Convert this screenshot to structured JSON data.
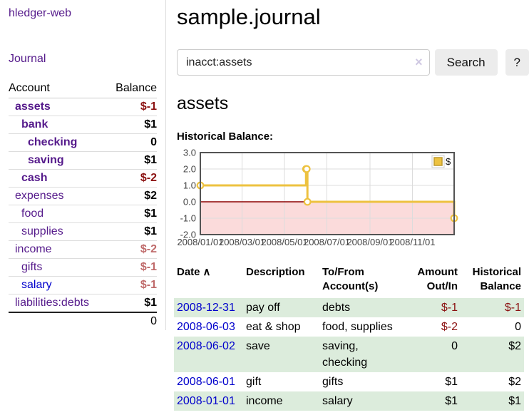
{
  "colors": {
    "purple": "#551a8b",
    "blue-link": "#0000cc",
    "neg-strong": "#8b1111",
    "neg-soft": "#bf6a6a",
    "row-green": "#dcecdc",
    "gold": "#edc240",
    "gold-dark": "#bf9a2c",
    "zero-red": "#8b0000",
    "neg-fill": "#fbdbdb",
    "grid": "#dcdcdc",
    "chart-border": "#545454",
    "axis-text": "#444444",
    "btn-bg": "#ececec",
    "input-border": "#cccccc",
    "divider": "#dddddd",
    "clear-x": "#cfc8e2"
  },
  "app": {
    "title": "hledger-web",
    "nav_journal": "Journal"
  },
  "sidebar": {
    "header": {
      "account": "Account",
      "balance": "Balance"
    },
    "accounts": [
      {
        "name": "assets",
        "depth": 1,
        "bold": true,
        "balance": "$-1",
        "neg": "strong"
      },
      {
        "name": "bank",
        "depth": 2,
        "bold": true,
        "balance": "$1"
      },
      {
        "name": "checking",
        "depth": 3,
        "bold": true,
        "balance": "0"
      },
      {
        "name": "saving",
        "depth": 3,
        "bold": true,
        "balance": "$1"
      },
      {
        "name": "cash",
        "depth": 2,
        "bold": true,
        "balance": "$-2",
        "neg": "strong"
      },
      {
        "name": "expenses",
        "depth": 1,
        "bold": false,
        "balance": "$2"
      },
      {
        "name": "food",
        "depth": 2,
        "bold": false,
        "balance": "$1"
      },
      {
        "name": "supplies",
        "depth": 2,
        "bold": false,
        "balance": "$1"
      },
      {
        "name": "income",
        "depth": 1,
        "bold": false,
        "balance": "$-2",
        "neg": "soft"
      },
      {
        "name": "gifts",
        "depth": 2,
        "bold": false,
        "balance": "$-1",
        "neg": "soft"
      },
      {
        "name": "salary",
        "depth": 2,
        "bold": false,
        "balance": "$-1",
        "neg": "soft",
        "link_color": "blue"
      },
      {
        "name": "liabilities:debts",
        "depth": 1,
        "bold": false,
        "balance": "$1"
      }
    ],
    "total": "0"
  },
  "main": {
    "title": "sample.journal",
    "search": {
      "value": "inacct:assets",
      "clear_icon": "×",
      "button": "Search",
      "help": "?"
    },
    "account_heading": "assets",
    "chart_label": "Historical Balance:"
  },
  "chart_data": {
    "type": "line",
    "steps": true,
    "title": "Historical Balance",
    "series": [
      {
        "name": "$",
        "color": "#edc240",
        "points": [
          [
            "2008-01-01",
            1
          ],
          [
            "2008-06-01",
            2
          ],
          [
            "2008-06-02",
            2
          ],
          [
            "2008-06-03",
            0
          ],
          [
            "2008-12-31",
            -1
          ]
        ]
      }
    ],
    "xlim": [
      "2008-01-01",
      "2008-12-31"
    ],
    "ylim": [
      -2,
      3
    ],
    "x_ticks": [
      "2008/01/01",
      "2008/03/01",
      "2008/05/01",
      "2008/07/01",
      "2008/09/01",
      "2008/11/01"
    ],
    "y_ticks": [
      "3.0",
      "2.0",
      "1.0",
      "0.0",
      "-1.0",
      "-2.0"
    ],
    "legend_position": "top-right",
    "grid": true,
    "negative_region_shaded": true,
    "zero_line": true
  },
  "register": {
    "sort_icon": "∧",
    "columns": {
      "date": "Date",
      "description": "Description",
      "accounts": "To/From Account(s)",
      "amount": "Amount Out/In",
      "balance": "Historical Balance"
    },
    "rows": [
      {
        "date": "2008-12-31",
        "description": "pay off",
        "accounts": "debts",
        "amount": "$-1",
        "balance": "$-1",
        "amount_neg": true,
        "balance_neg": true
      },
      {
        "date": "2008-06-03",
        "description": "eat & shop",
        "accounts": "food, supplies",
        "amount": "$-2",
        "balance": "0",
        "amount_neg": true,
        "balance_neg": false
      },
      {
        "date": "2008-06-02",
        "description": "save",
        "accounts": "saving, checking",
        "amount": "0",
        "balance": "$2",
        "amount_neg": false,
        "balance_neg": false
      },
      {
        "date": "2008-06-01",
        "description": "gift",
        "accounts": "gifts",
        "amount": "$1",
        "balance": "$2",
        "amount_neg": false,
        "balance_neg": false
      },
      {
        "date": "2008-01-01",
        "description": "income",
        "accounts": "salary",
        "amount": "$1",
        "balance": "$1",
        "amount_neg": false,
        "balance_neg": false
      }
    ]
  }
}
